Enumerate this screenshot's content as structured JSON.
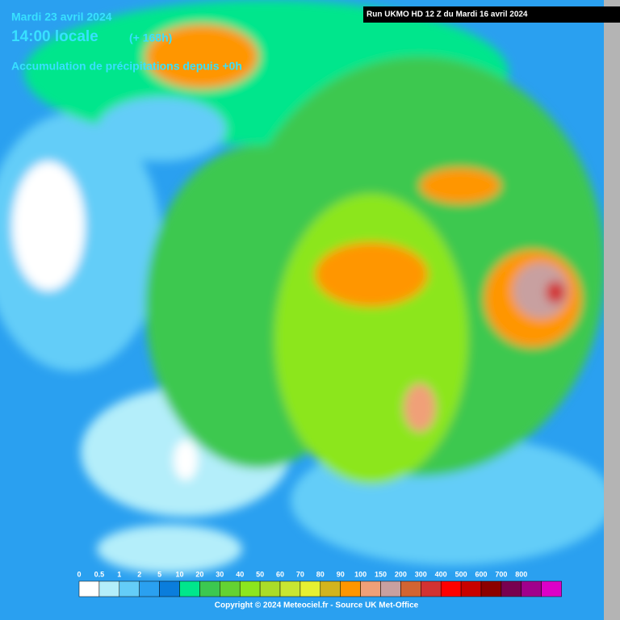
{
  "header": {
    "date": "Mardi 23 avril 2024",
    "time": "14:00 locale",
    "lead": "(+ 168h)",
    "subtitle": "Accumulation de précipitations depuis +0h",
    "run": "Run UKMO HD 12 Z du Mardi 16 avril 2024"
  },
  "legend": {
    "items": [
      {
        "label": "0",
        "color": "#ffffff"
      },
      {
        "label": "0.5",
        "color": "#b4eefa"
      },
      {
        "label": "1",
        "color": "#64cdf8"
      },
      {
        "label": "2",
        "color": "#2aa0f0"
      },
      {
        "label": "5",
        "color": "#0a7ddc"
      },
      {
        "label": "10",
        "color": "#00e68c"
      },
      {
        "label": "20",
        "color": "#3cc850"
      },
      {
        "label": "30",
        "color": "#64d232"
      },
      {
        "label": "40",
        "color": "#8ce61e"
      },
      {
        "label": "50",
        "color": "#aadc28"
      },
      {
        "label": "60",
        "color": "#c8e632"
      },
      {
        "label": "70",
        "color": "#e6f032"
      },
      {
        "label": "80",
        "color": "#d2b41e"
      },
      {
        "label": "90",
        "color": "#ff9600"
      },
      {
        "label": "100",
        "color": "#f0a078"
      },
      {
        "label": "150",
        "color": "#c8a0a0"
      },
      {
        "label": "200",
        "color": "#d26432"
      },
      {
        "label": "300",
        "color": "#d23232"
      },
      {
        "label": "400",
        "color": "#ff0000"
      },
      {
        "label": "500",
        "color": "#c80000"
      },
      {
        "label": "600",
        "color": "#8c0000"
      },
      {
        "label": "700",
        "color": "#780050"
      },
      {
        "label": "800",
        "color": "#a0008c"
      }
    ],
    "extra_color": "#dc00c8"
  },
  "footer": {
    "copyright": "Copyright © 2024 Meteociel.fr - Source UK Met-Office"
  }
}
